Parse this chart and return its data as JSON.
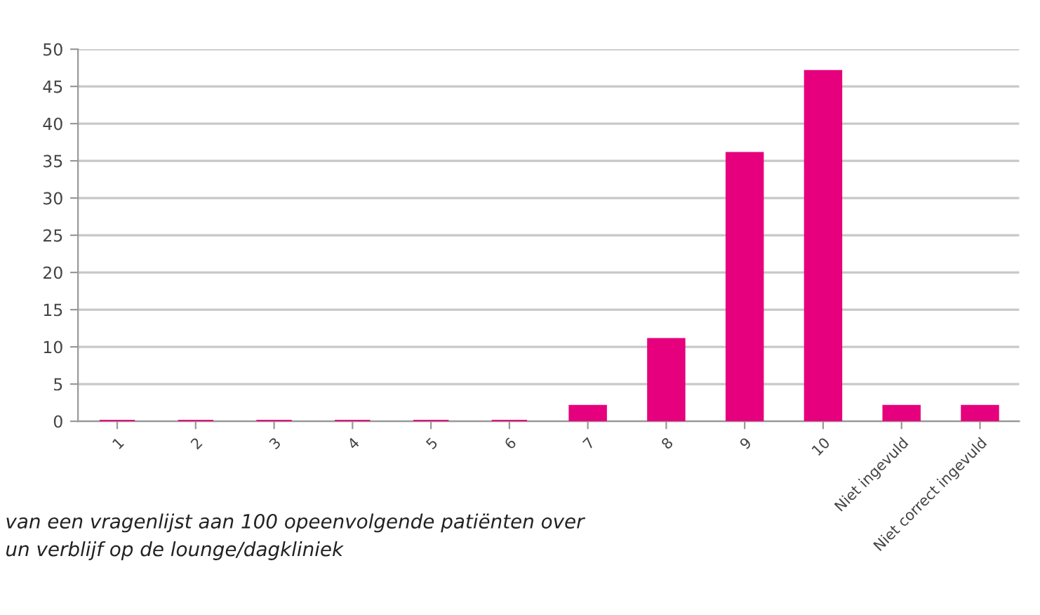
{
  "chart_data": {
    "type": "bar",
    "categories": [
      "1",
      "2",
      "3",
      "4",
      "5",
      "6",
      "7",
      "8",
      "9",
      "10",
      "Niet ingevuld",
      "Niet correct ingevuld"
    ],
    "values": [
      0,
      0,
      0,
      0,
      0,
      0,
      2,
      11,
      36,
      47,
      2,
      2
    ],
    "color": "#e6007e",
    "ylim": [
      0,
      50
    ],
    "yticks": [
      0,
      5,
      10,
      15,
      20,
      25,
      30,
      35,
      40,
      45,
      50
    ],
    "grid": "y",
    "annotations": [
      "van een vragenlijst aan 100 opeenvolgende patiënten over\nun verblijf op de lounge/dagkliniek"
    ]
  }
}
